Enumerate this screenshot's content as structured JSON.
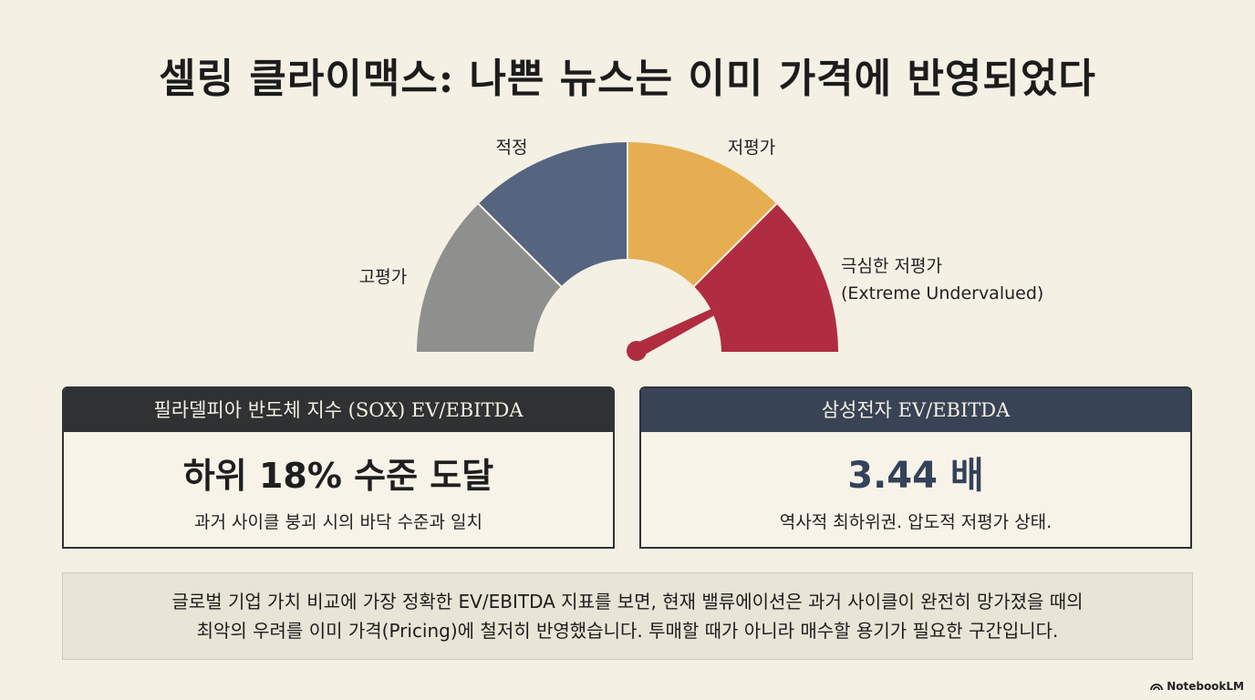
{
  "title": "셀링 클라이맥스: 나쁜 뉴스는 이미 가격에 반영되었다",
  "gauge": {
    "segments": [
      {
        "label": "고평가",
        "color": "#8f8f8d"
      },
      {
        "label": "적정",
        "color": "#55647f"
      },
      {
        "label": "저평가",
        "color": "#e6ae50"
      },
      {
        "label": "극심한 저평가",
        "label2": "(Extreme Undervalued)",
        "color": "#b02c40"
      }
    ],
    "needle_color": "#b02c40",
    "needle_position": 0.85
  },
  "cards": {
    "left": {
      "header": "필라델피아 반도체 지수 (SOX) EV/EBITDA",
      "main": "하위 18% 수준 도달",
      "sub": "과거 사이클 붕괴 시의 바닥 수준과 일치"
    },
    "right": {
      "header": "삼성전자 EV/EBITDA",
      "main": "3.44 배",
      "sub": "역사적 최하위권. 압도적 저평가 상태."
    }
  },
  "note": {
    "line1": "글로벌 기업 가치 비교에 가장 정확한 EV/EBITDA 지표를 보면, 현재 밸류에이션은 과거 사이클이 완전히 망가졌을 때의",
    "line2": "최악의 우려를 이미 가격(Pricing)에 철저히 반영했습니다. 투매할 때가 아니라 매수할 용기가 필요한 구간입니다."
  },
  "brand": "NotebookLM"
}
